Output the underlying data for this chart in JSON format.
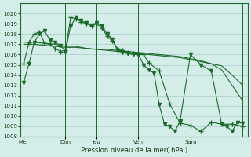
{
  "bg_color": "#d4ede8",
  "grid_color": "#aacccc",
  "line_color": "#1a6b2a",
  "xlabel": "Pression niveau de la mer( hPa )",
  "ylim": [
    1008,
    1021
  ],
  "yticks": [
    1008,
    1009,
    1010,
    1011,
    1012,
    1013,
    1014,
    1015,
    1016,
    1017,
    1018,
    1019,
    1020
  ],
  "day_lines_x": [
    0,
    4,
    7,
    11,
    16,
    21
  ],
  "day_labels": [
    "Mer",
    "Dim",
    "Jeu",
    "Ven",
    "Sam"
  ],
  "series": [
    {
      "x": [
        0,
        0.5,
        1,
        1.5,
        2,
        2.5,
        3,
        3.5,
        4,
        4.5,
        5,
        5.5,
        6,
        6.5,
        7,
        7.5,
        8,
        8.5,
        9,
        9.5,
        10,
        10.5,
        11,
        11.5,
        12,
        12.5,
        13,
        13.5,
        14,
        14.5,
        15,
        16,
        17,
        18,
        19,
        19.5,
        20,
        20.5,
        21
      ],
      "y": [
        1013.3,
        1015.1,
        1017.2,
        1018.0,
        1018.3,
        1017.4,
        1017.2,
        1016.9,
        1016.3,
        1018.8,
        1019.6,
        1019.3,
        1019.1,
        1018.9,
        1019.1,
        1018.8,
        1018.0,
        1017.5,
        1016.4,
        1016.2,
        1016.1,
        1016.0,
        1016.0,
        1015.0,
        1014.5,
        1014.2,
        1011.1,
        1009.2,
        1009.0,
        1008.5,
        1009.5,
        1016.0,
        1015.0,
        1014.4,
        1009.2,
        1009.0,
        1008.5,
        1009.4,
        1009.3
      ],
      "marker": "v",
      "markersize": 3,
      "use_marker": true
    },
    {
      "x": [
        0,
        0.5,
        1,
        1.5,
        2,
        2.5,
        3,
        3.5,
        4,
        4.5,
        5,
        5.5,
        6,
        6.5,
        7,
        7.5,
        8,
        8.5,
        9,
        9.5,
        10,
        10.5,
        11,
        11.5,
        12,
        13,
        14,
        15,
        16,
        17,
        18,
        19,
        20,
        21
      ],
      "y": [
        1015.1,
        1017.2,
        1018.0,
        1018.2,
        1017.1,
        1017.0,
        1016.6,
        1016.3,
        1016.4,
        1019.6,
        1019.5,
        1019.2,
        1019.0,
        1018.8,
        1019.0,
        1018.6,
        1017.8,
        1017.3,
        1016.6,
        1016.4,
        1016.2,
        1016.1,
        1016.0,
        1016.0,
        1015.2,
        1014.4,
        1011.2,
        1009.3,
        1009.1,
        1008.5,
        1009.4,
        1009.2,
        1009.2,
        1009.0
      ],
      "marker": "+",
      "markersize": 4,
      "use_marker": true
    },
    {
      "x": [
        0,
        1,
        2,
        3,
        4,
        5,
        6,
        7,
        8,
        9,
        10,
        11,
        12,
        13,
        14,
        15,
        16,
        17,
        18,
        19,
        20,
        21
      ],
      "y": [
        1017.2,
        1017.2,
        1017.1,
        1017.0,
        1016.8,
        1016.8,
        1016.6,
        1016.5,
        1016.4,
        1016.3,
        1016.2,
        1016.1,
        1016.0,
        1015.9,
        1015.8,
        1015.7,
        1015.5,
        1015.3,
        1015.1,
        1014.9,
        1014.0,
        1013.0
      ],
      "marker": "none",
      "markersize": 0,
      "use_marker": false
    },
    {
      "x": [
        0,
        1,
        2,
        3,
        4,
        5,
        6,
        7,
        8,
        9,
        10,
        11,
        12,
        13,
        14,
        15,
        16,
        17,
        18,
        19,
        20,
        21
      ],
      "y": [
        1017.0,
        1017.0,
        1016.9,
        1016.8,
        1016.7,
        1016.7,
        1016.6,
        1016.5,
        1016.5,
        1016.4,
        1016.3,
        1016.2,
        1016.1,
        1016.0,
        1015.9,
        1015.8,
        1015.6,
        1015.4,
        1015.1,
        1014.5,
        1013.0,
        1011.5
      ],
      "marker": "none",
      "markersize": 0,
      "use_marker": false
    }
  ]
}
